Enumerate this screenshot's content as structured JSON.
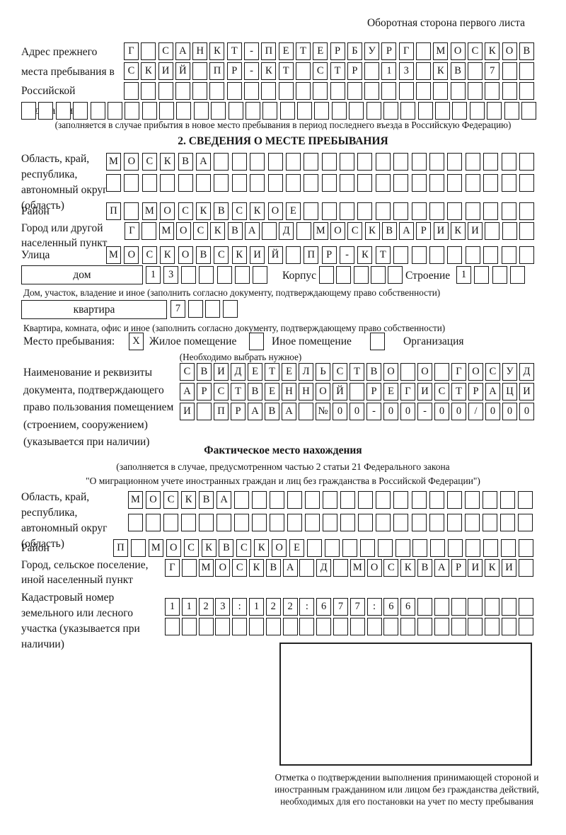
{
  "page": {
    "header": "Оборотная сторона первого листа"
  },
  "prev_address": {
    "label": "Адрес прежнего места пребывания в Российской Федерации",
    "note": "(заполняется в случае прибытия в новое место пребывания в период последнего въезда в Российскую Федерацию)"
  },
  "section2": {
    "title": "2. СВЕДЕНИЯ О МЕСТЕ ПРЕБЫВАНИЯ",
    "labels": {
      "oblast": "Область, край, республика, автономный округ (область)",
      "raion": "Район",
      "gorod": "Город или другой населенный пункт",
      "ulitsa": "Улица",
      "dom": "дом",
      "korpus": "Корпус",
      "stroenie": "Строение",
      "dom_note": "Дом, участок, владение и иное (заполнить согласно документу, подтверждающему право собственности)",
      "kvartira": "квартира",
      "kvartira_note": "Квартира, комната, офис и иное (заполнить согласно документу, подтверждающему право собственности)",
      "mesto": "Место пребывания:",
      "zhiloe": "Жилое помещение",
      "inoe": "Иное помещение",
      "org": "Организация",
      "vybrat": "(Необходимо выбрать нужное)",
      "doc_label": "Наименование и реквизиты документа, подтверждающего право пользования помещением (строением, сооружением) (указывается при наличии)"
    }
  },
  "fact": {
    "title": "Фактическое место нахождения",
    "note1": "(заполняется в случае, предусмотренном частью 2 статьи 21 Федерального закона",
    "note2": "\"О миграционном учете иностранных граждан и лиц без гражданства в Российской Федерации\")",
    "labels": {
      "oblast": "Область, край, республика, автономный округ (область)",
      "raion": "Район",
      "gorod": "Город, сельское поселение, иной населенный пункт",
      "kadastr": "Кадастровый номер земельного или лесного участка (указывается при наличии)"
    },
    "stamp_note": "Отметка о подтверждении выполнения принимающей стороной и иностранным гражданином или лицом без гражданства действий, необходимых для его постановки на учет по месту пребывания"
  },
  "cells": {
    "prev1": {
      "text": "Г САНКТ-ПЕТЕРБУРГ МОСКОВ",
      "len": 24
    },
    "prev2": {
      "text": "СКИЙ ПР-КТ СТР 13 КВ 7",
      "len": 24
    },
    "prev3": {
      "text": "",
      "len": 24
    },
    "prev4": {
      "text": "",
      "len": 30
    },
    "obl1": {
      "text": "МОСКВА",
      "len": 24
    },
    "obl2": {
      "text": "",
      "len": 24
    },
    "raion": {
      "text": "П МОСКВСКОЕ",
      "len": 24
    },
    "gorod": {
      "text": "Г МОСКВА Д МОСКВАРИКИ",
      "len": 24
    },
    "ulitsa": {
      "text": "МОСКОВСКИЙ ПР-КТ",
      "len": 24
    },
    "dom_num": {
      "text": "13",
      "len": 7
    },
    "korpus_num": {
      "text": "",
      "len": 5
    },
    "stroenie_num": {
      "text": "1",
      "len": 4
    },
    "kvartira_num": {
      "text": "7",
      "len": 4
    },
    "cb_zhiloe": {
      "text": "Х",
      "len": 1
    },
    "cb_inoe": {
      "text": "",
      "len": 1
    },
    "cb_org": {
      "text": "",
      "len": 1
    },
    "doc1": {
      "text": "СВИДЕТЕЛЬСТВО О ГОСУД",
      "len": 21
    },
    "doc2": {
      "text": "АРСТВЕННОЙ РЕГИСТРАЦИ",
      "len": 21
    },
    "doc3": {
      "text": "И ПРАВА №00-00-00/000",
      "len": 21
    },
    "f_obl1": {
      "text": "МОСКВА",
      "len": 23
    },
    "f_obl2": {
      "text": "",
      "len": 23
    },
    "f_raion": {
      "text": "П МОСКВСКОЕ",
      "len": 24
    },
    "f_gorod": {
      "text": "Г МОСКВА Д МОСКВАРИКИ",
      "len": 22
    },
    "kad1": {
      "text": "1123:122:677:66",
      "len": 22
    },
    "kad2": {
      "text": "",
      "len": 22
    }
  }
}
